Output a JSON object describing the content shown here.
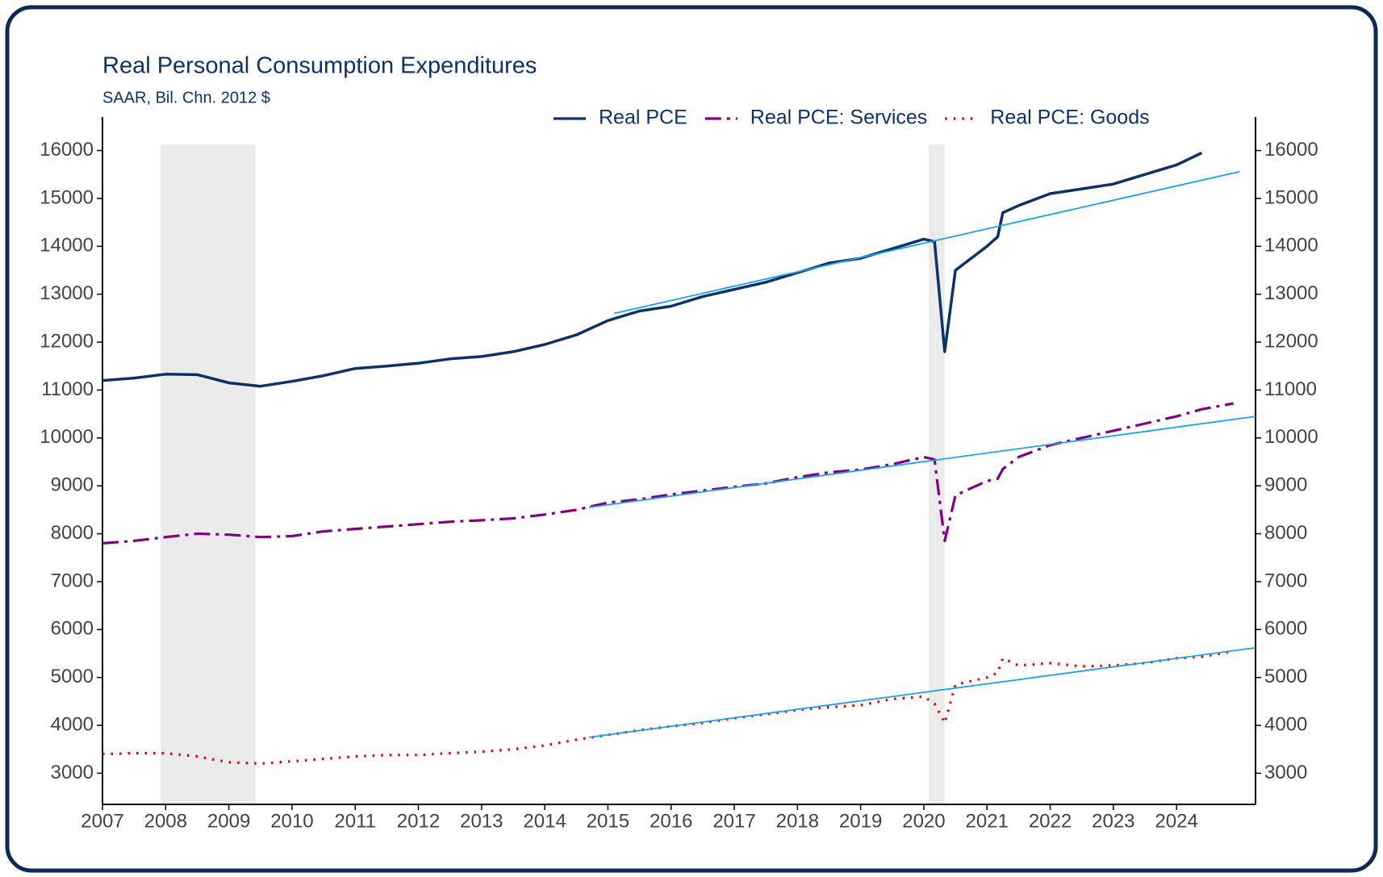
{
  "chart_data": {
    "type": "line",
    "title": "Real Personal Consumption Expenditures",
    "subtitle": "SAAR, Bil. Chn. 2012 $",
    "x": [
      2007,
      2007.5,
      2008,
      2008.5,
      2009,
      2009.5,
      2010,
      2010.5,
      2011,
      2011.5,
      2012,
      2012.5,
      2013,
      2013.5,
      2014,
      2014.5,
      2015,
      2015.5,
      2016,
      2016.5,
      2017,
      2017.5,
      2018,
      2018.5,
      2019,
      2019.5,
      2020,
      2020.17,
      2020.33,
      2020.5,
      2021,
      2021.17,
      2021.25,
      2021.5,
      2022,
      2022.5,
      2023,
      2023.5,
      2024,
      2024.4,
      2024.9
    ],
    "series": [
      {
        "name": "Real PCE",
        "color": "#0d3366",
        "dash": "solid",
        "values": [
          11200,
          11250,
          11330,
          11320,
          11150,
          11080,
          11180,
          11300,
          11450,
          11500,
          11560,
          11650,
          11700,
          11800,
          11950,
          12150,
          12450,
          12650,
          12750,
          12950,
          13100,
          13250,
          13450,
          13650,
          13750,
          13950,
          14150,
          14100,
          11800,
          13500,
          14000,
          14200,
          14700,
          14850,
          15100,
          15200,
          15300,
          15500,
          15700,
          15950,
          null
        ]
      },
      {
        "name": "Real PCE: Services",
        "color": "#800080",
        "dash": "dashdot",
        "values": [
          7800,
          7850,
          7930,
          8000,
          7980,
          7930,
          7950,
          8050,
          8100,
          8150,
          8200,
          8250,
          8280,
          8320,
          8400,
          8500,
          8650,
          8720,
          8820,
          8900,
          8980,
          9050,
          9180,
          9280,
          9340,
          9450,
          9600,
          9550,
          7850,
          8800,
          9100,
          9150,
          9350,
          9600,
          9850,
          10000,
          10150,
          10300,
          10450,
          10600,
          10720
        ]
      },
      {
        "name": "Real PCE: Goods",
        "color": "#e00000",
        "dash": "dotted",
        "values": [
          3400,
          3420,
          3420,
          3350,
          3230,
          3200,
          3250,
          3300,
          3350,
          3380,
          3380,
          3420,
          3450,
          3500,
          3580,
          3700,
          3800,
          3900,
          3980,
          4050,
          4150,
          4230,
          4320,
          4380,
          4420,
          4550,
          4600,
          4450,
          4050,
          4850,
          5000,
          5100,
          5400,
          5250,
          5300,
          5230,
          5250,
          5300,
          5400,
          5430,
          5550
        ]
      }
    ],
    "trend_lines": {
      "color": "#1aa3e8",
      "lines": [
        {
          "x": [
            2015.1,
            2025.0
          ],
          "values": [
            12600,
            15560
          ]
        },
        {
          "x": [
            2014.7,
            2025.25
          ],
          "values": [
            8550,
            10450
          ]
        },
        {
          "x": [
            2014.7,
            2025.25
          ],
          "values": [
            3750,
            5620
          ]
        }
      ]
    },
    "shaded_periods": {
      "color": "#ebebeb",
      "ranges": [
        [
          2007.92,
          2009.42
        ],
        [
          2020.08,
          2020.33
        ]
      ]
    },
    "xlim": [
      2007,
      2025.25
    ],
    "xticks": [
      2007,
      2008,
      2009,
      2010,
      2011,
      2012,
      2013,
      2014,
      2015,
      2016,
      2017,
      2018,
      2019,
      2020,
      2021,
      2022,
      2023,
      2024
    ],
    "ylim": [
      2350,
      16700
    ],
    "yticks": [
      3000,
      4000,
      5000,
      6000,
      7000,
      8000,
      9000,
      10000,
      11000,
      12000,
      13000,
      14000,
      15000,
      16000
    ],
    "legend": "top"
  }
}
